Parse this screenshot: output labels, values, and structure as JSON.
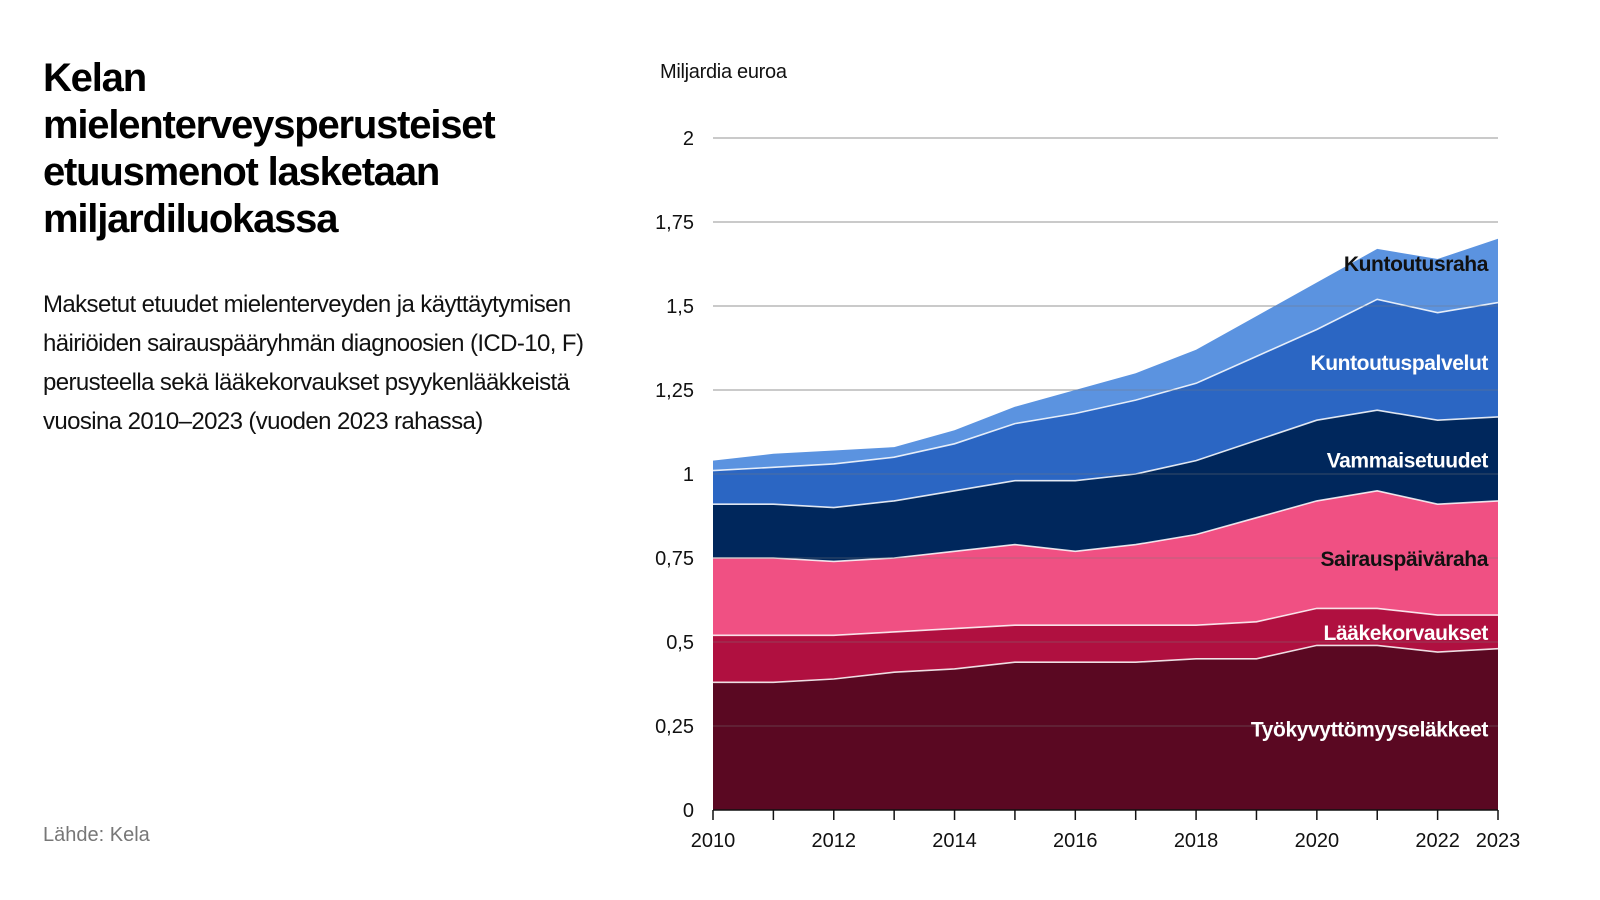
{
  "header": {
    "title": "Kelan mielenterveysperusteiset etuusmenot lasketaan miljardiluokassa",
    "subtitle": "Maksetut etuudet mielenterveyden ja käyttäytymisen häiriöiden sairauspääryhmän diagnoosien (ICD-10, F) perusteella sekä lääkekorvaukset psyykenlääkkeistä vuosina 2010–2023 (vuoden 2023 rahassa)",
    "source": "Lähde: Kela"
  },
  "chart_data": {
    "type": "area",
    "stacked": true,
    "title": "Kelan mielenterveysperusteiset etuusmenot lasketaan miljardiluokassa",
    "ylabel": "Miljardia euroa",
    "xlabel": "",
    "x": [
      2010,
      2011,
      2012,
      2013,
      2014,
      2015,
      2016,
      2017,
      2018,
      2019,
      2020,
      2021,
      2022,
      2023
    ],
    "xticks": [
      "2010",
      "2012",
      "2014",
      "2016",
      "2018",
      "2020",
      "2022",
      "2023"
    ],
    "xtick_values": [
      2010,
      2012,
      2014,
      2016,
      2018,
      2020,
      2022,
      2023
    ],
    "yticks": [
      "0",
      "0,25",
      "0,5",
      "0,75",
      "1",
      "1,25",
      "1,5",
      "1,75",
      "2"
    ],
    "ytick_values": [
      0,
      0.25,
      0.5,
      0.75,
      1,
      1.25,
      1.5,
      1.75,
      2
    ],
    "ylim": [
      0,
      2
    ],
    "xlim": [
      2010,
      2023
    ],
    "grid": true,
    "legend": "inline labels at right",
    "series": [
      {
        "name": "Työkyvyttömyyseläkkeet",
        "color": "#5a0822",
        "label_color": "#ffffff",
        "values": [
          0.38,
          0.38,
          0.39,
          0.41,
          0.42,
          0.44,
          0.44,
          0.44,
          0.45,
          0.45,
          0.49,
          0.49,
          0.47,
          0.48
        ]
      },
      {
        "name": "Lääkekorvaukset",
        "color": "#b01040",
        "label_color": "#ffffff",
        "values": [
          0.14,
          0.14,
          0.13,
          0.12,
          0.12,
          0.11,
          0.11,
          0.11,
          0.1,
          0.11,
          0.11,
          0.11,
          0.11,
          0.1
        ]
      },
      {
        "name": "Sairauspäiväraha",
        "color": "#f05083",
        "label_color": "#111111",
        "values": [
          0.23,
          0.23,
          0.22,
          0.22,
          0.23,
          0.24,
          0.22,
          0.24,
          0.27,
          0.31,
          0.32,
          0.35,
          0.33,
          0.34
        ]
      },
      {
        "name": "Vammaisetuudet",
        "color": "#00275c",
        "label_color": "#ffffff",
        "values": [
          0.16,
          0.16,
          0.16,
          0.17,
          0.18,
          0.19,
          0.21,
          0.21,
          0.22,
          0.23,
          0.24,
          0.24,
          0.25,
          0.25
        ]
      },
      {
        "name": "Kuntoutuspalvelut",
        "color": "#2b66c3",
        "label_color": "#ffffff",
        "values": [
          0.1,
          0.11,
          0.13,
          0.13,
          0.14,
          0.17,
          0.2,
          0.22,
          0.23,
          0.25,
          0.27,
          0.33,
          0.32,
          0.34
        ]
      },
      {
        "name": "Kuntoutusraha",
        "color": "#5b93e0",
        "label_color": "#111111",
        "values": [
          0.03,
          0.04,
          0.04,
          0.03,
          0.04,
          0.05,
          0.07,
          0.08,
          0.1,
          0.12,
          0.14,
          0.15,
          0.16,
          0.19
        ]
      }
    ]
  }
}
